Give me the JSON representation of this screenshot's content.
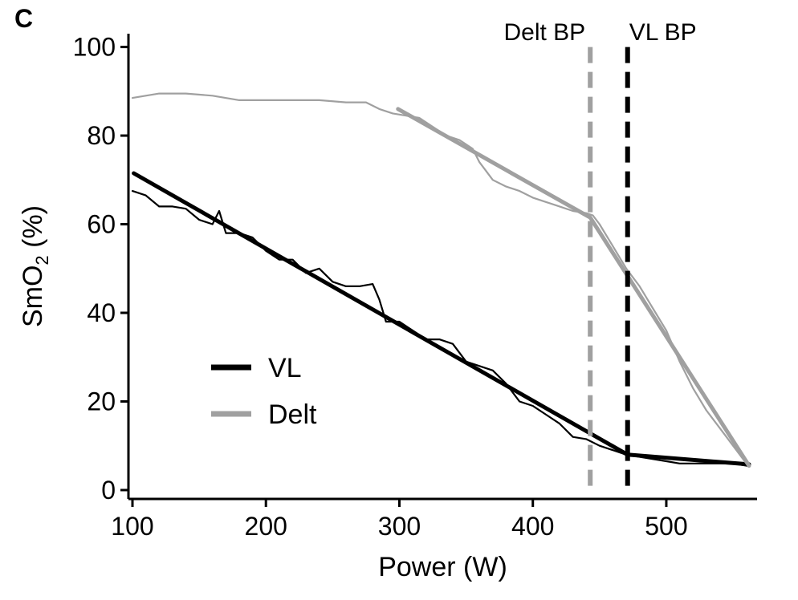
{
  "panel_label": "C",
  "chart_data": {
    "type": "line",
    "title": "",
    "xlabel": "Power (W)",
    "ylabel": "SmO",
    "ylabel_subscript": "2",
    "ylabel_suffix": " (%)",
    "xlim": [
      97,
      568
    ],
    "ylim": [
      -2,
      103
    ],
    "xticks": [
      100,
      200,
      300,
      400,
      500
    ],
    "yticks": [
      0,
      20,
      40,
      60,
      80,
      100
    ],
    "grid": false,
    "legend": {
      "position": "bottom-left",
      "entries": [
        {
          "label": "VL",
          "color": "#000000"
        },
        {
          "label": "Delt",
          "color": "#a0a0a0"
        }
      ]
    },
    "breakpoints": [
      {
        "label": "Delt BP",
        "x": 443,
        "color": "#a0a0a0"
      },
      {
        "label": "VL BP",
        "x": 471,
        "color": "#000000"
      }
    ],
    "series": [
      {
        "name": "VL",
        "color": "#000000",
        "x": [
          100,
          110,
          120,
          130,
          140,
          150,
          160,
          165,
          170,
          180,
          190,
          200,
          210,
          220,
          230,
          240,
          250,
          260,
          270,
          280,
          285,
          290,
          300,
          310,
          320,
          330,
          340,
          350,
          360,
          370,
          380,
          390,
          400,
          410,
          420,
          430,
          440,
          450,
          460,
          470,
          480,
          490,
          500,
          510,
          520,
          530,
          540,
          550,
          560,
          562
        ],
        "y": [
          67.5,
          66.5,
          64,
          64,
          63.5,
          61,
          60,
          63,
          58,
          58,
          57,
          54,
          52,
          52,
          49,
          50,
          47,
          46,
          46,
          46.5,
          43,
          38,
          38,
          36,
          34,
          34,
          33,
          29,
          28,
          27,
          24,
          20,
          19,
          17,
          15,
          12,
          11.5,
          10,
          9,
          8,
          7.5,
          7,
          6.5,
          6,
          6,
          6,
          6,
          6,
          5.5,
          5.5
        ]
      },
      {
        "name": "VL fit",
        "color": "#000000",
        "x": [
          101,
          471,
          562
        ],
        "y": [
          71.5,
          8,
          5.8
        ]
      },
      {
        "name": "Delt",
        "color": "#a0a0a0",
        "x": [
          100,
          110,
          120,
          140,
          160,
          180,
          200,
          220,
          240,
          260,
          275,
          285,
          295,
          305,
          315,
          325,
          335,
          345,
          355,
          360,
          365,
          370,
          380,
          390,
          400,
          410,
          420,
          430,
          440,
          445,
          450,
          460,
          470,
          480,
          490,
          500,
          510,
          520,
          530,
          540,
          550,
          560,
          562
        ],
        "y": [
          88.5,
          89,
          89.5,
          89.5,
          89,
          88,
          88,
          88,
          88,
          87.5,
          87.5,
          86,
          85,
          84.5,
          84,
          82,
          80,
          79,
          77,
          74,
          72,
          70,
          68.5,
          67.5,
          66,
          65,
          64,
          63,
          62.5,
          62,
          60,
          55,
          50,
          46,
          41,
          36,
          29,
          23,
          18,
          14,
          10,
          6,
          5.5
        ]
      },
      {
        "name": "Delt fit",
        "color": "#a0a0a0",
        "x": [
          299,
          443,
          562
        ],
        "y": [
          86,
          61.5,
          5.5
        ]
      }
    ]
  }
}
